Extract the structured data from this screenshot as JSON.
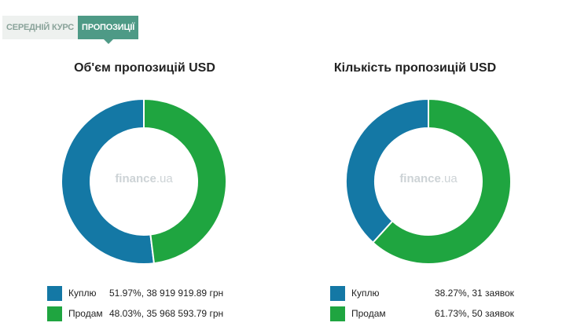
{
  "tabs": {
    "avg_rate": "СЕРЕДНІЙ КУРС",
    "offers": "ПРОПОЗИЦІЇ"
  },
  "watermark": {
    "brand": "finance",
    "domain": ".ua"
  },
  "colors": {
    "buy": "#1478a5",
    "sell": "#1fa540",
    "accent": "#4e9a86"
  },
  "chart_data": [
    {
      "type": "pie",
      "title": "Об'єм пропозицій USD",
      "categories": [
        "Куплю",
        "Продам"
      ],
      "values": [
        51.97,
        48.03
      ],
      "amounts": [
        "38 919 919.89 грн",
        "35 968 593.79 грн"
      ],
      "legend_text": [
        "51.97%, 38 919 919.89 грн",
        "48.03%, 35 968 593.79 грн"
      ],
      "colors": [
        "#1478a5",
        "#1fa540"
      ],
      "legend": "bottom"
    },
    {
      "type": "pie",
      "title": "Кількість пропозицій USD",
      "categories": [
        "Куплю",
        "Продам"
      ],
      "values": [
        38.27,
        61.73
      ],
      "amounts": [
        "31 заявок",
        "50 заявок"
      ],
      "legend_text": [
        "38.27%, 31 заявок",
        "61.73%, 50 заявок"
      ],
      "colors": [
        "#1478a5",
        "#1fa540"
      ],
      "legend": "bottom"
    }
  ]
}
